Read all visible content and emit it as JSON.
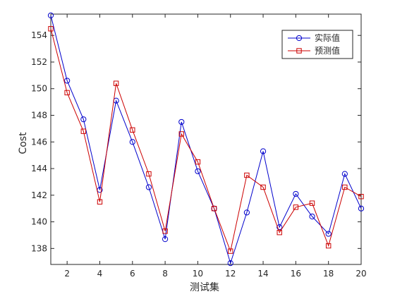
{
  "chart_data": {
    "type": "line",
    "title": "",
    "xlabel": "测试集",
    "ylabel": "Cost",
    "x": [
      1,
      2,
      3,
      4,
      5,
      6,
      7,
      8,
      9,
      10,
      11,
      12,
      13,
      14,
      15,
      16,
      17,
      18,
      19,
      20
    ],
    "xlim": [
      1,
      20
    ],
    "ylim": [
      136.8,
      155.6
    ],
    "xticks": [
      2,
      4,
      6,
      8,
      10,
      12,
      14,
      16,
      18,
      20
    ],
    "yticks": [
      138,
      140,
      142,
      144,
      146,
      148,
      150,
      152,
      154
    ],
    "grid": false,
    "legend_position": "top-right",
    "series": [
      {
        "name": "实际值",
        "color": "#0000cc",
        "marker": "circle",
        "values": [
          155.5,
          150.6,
          147.7,
          142.4,
          149.1,
          146.0,
          142.6,
          138.7,
          147.5,
          143.8,
          141.0,
          136.9,
          140.7,
          145.3,
          139.6,
          142.1,
          140.4,
          139.1,
          143.6,
          141.0
        ]
      },
      {
        "name": "预测值",
        "color": "#cc0000",
        "marker": "square",
        "values": [
          154.5,
          149.7,
          146.8,
          141.5,
          150.4,
          146.9,
          143.6,
          139.3,
          146.6,
          144.5,
          141.0,
          137.8,
          143.5,
          142.6,
          139.2,
          141.1,
          141.4,
          138.2,
          142.6,
          141.9
        ]
      }
    ]
  }
}
